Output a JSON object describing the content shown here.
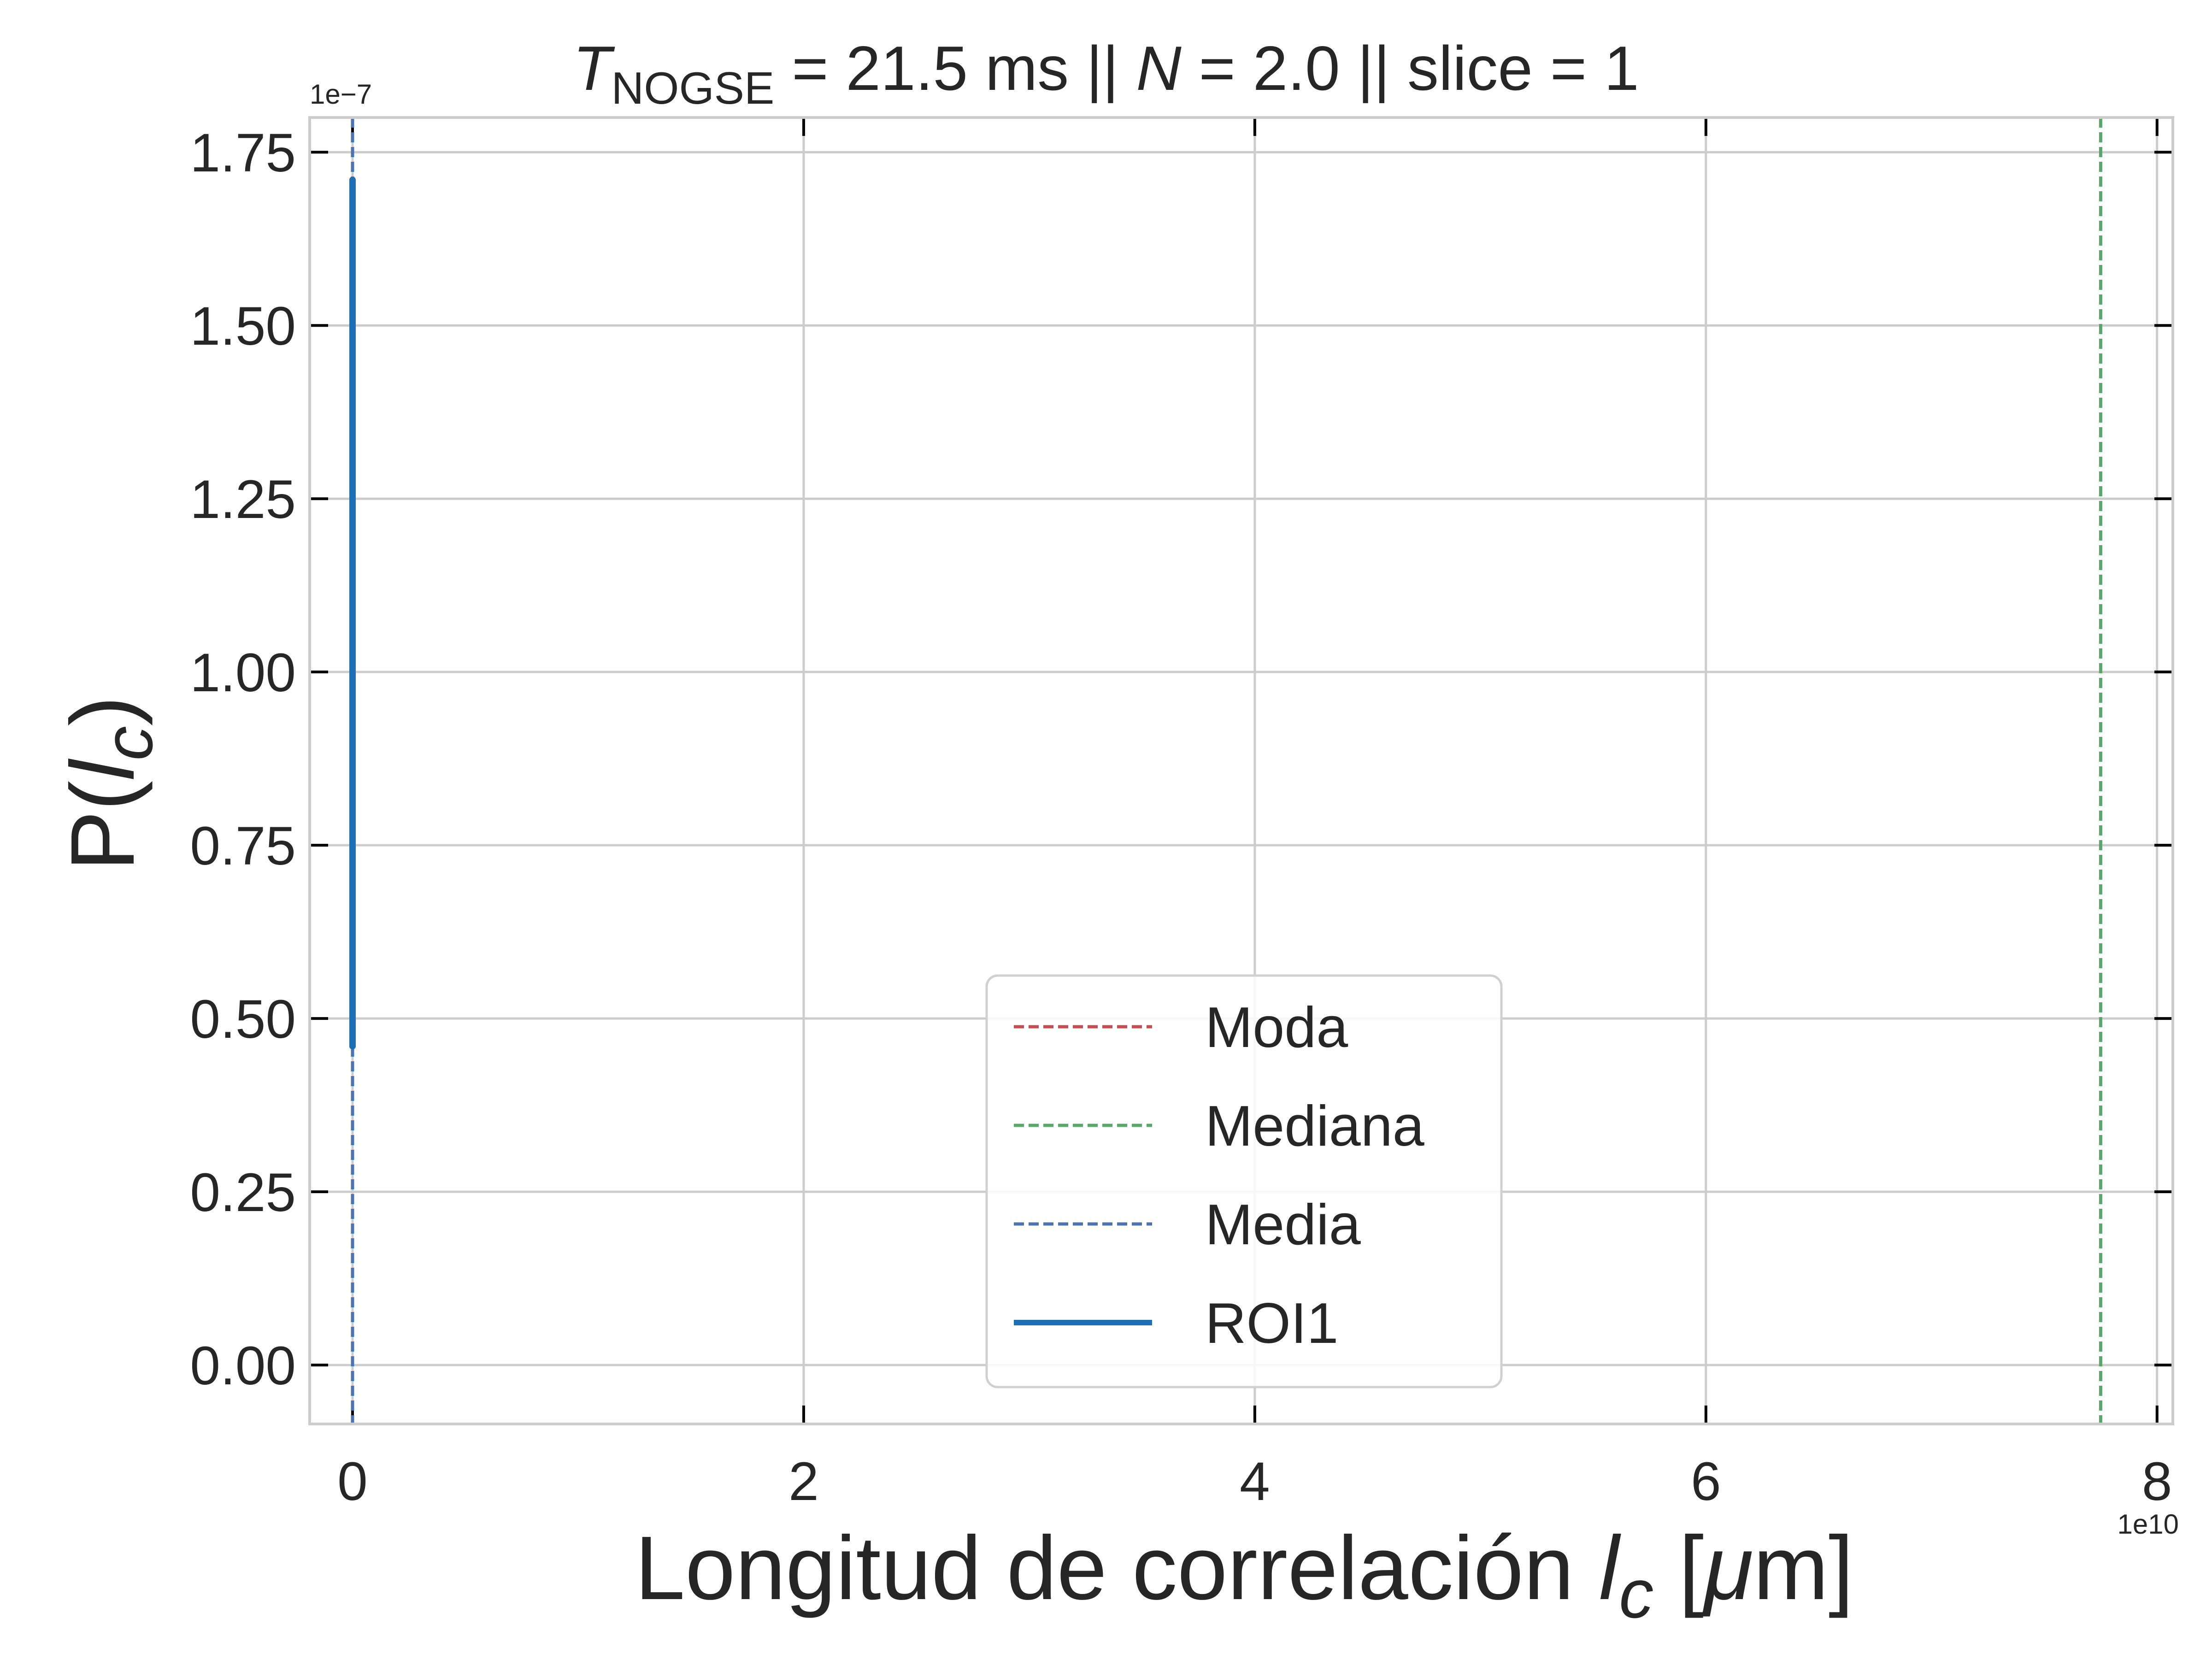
{
  "chart_data": {
    "type": "line",
    "title_parts": {
      "t_symbol": "T",
      "t_subscript": "NOGSE",
      "t_value": " = 21.5 ms  ||  ",
      "n_symbol": "N",
      "n_value": " = 2.0 || slice = 1"
    },
    "xlabel_parts": {
      "prefix": "Longitud de correlación ",
      "l": "l",
      "c": "c",
      "suffix_open": " [",
      "mu": "μ",
      "suffix_close": "m]"
    },
    "ylabel_parts": {
      "prefix": "P(",
      "l": "l",
      "c": "c",
      "suffix": ")"
    },
    "x_offset_label": "1e10",
    "y_offset_label": "1e−7",
    "xlim": [
      -0.19,
      8.07
    ],
    "ylim": [
      -0.085,
      1.8
    ],
    "xticks": [
      0,
      2,
      4,
      6,
      8
    ],
    "xtick_labels": [
      "0",
      "2",
      "4",
      "6",
      "8"
    ],
    "yticks": [
      0.0,
      0.25,
      0.5,
      0.75,
      1.0,
      1.25,
      1.5,
      1.75
    ],
    "ytick_labels": [
      "0.00",
      "0.25",
      "0.50",
      "0.75",
      "1.00",
      "1.25",
      "1.50",
      "1.75"
    ],
    "grid": true,
    "legend_position": "lower center",
    "vlines": [
      {
        "name": "Moda",
        "x": 0.0,
        "color": "#c44e52",
        "style": "dashed"
      },
      {
        "name": "Mediana",
        "x": 7.75,
        "color": "#55a868",
        "style": "dashed"
      },
      {
        "name": "Media",
        "x": 0.0,
        "color": "#4c72b0",
        "style": "dashed"
      }
    ],
    "series": [
      {
        "name": "ROI1",
        "color": "#1f6fb4",
        "x": [
          0.0,
          0.0
        ],
        "y": [
          0.46,
          1.71
        ]
      }
    ]
  }
}
